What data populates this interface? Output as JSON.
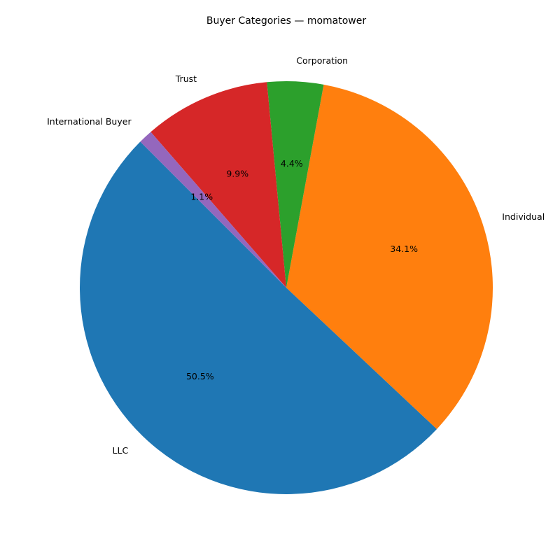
{
  "chart_data": {
    "type": "pie",
    "title": "Buyer Categories — momatower",
    "start_angle_deg": 135,
    "direction": "counterclockwise",
    "slices": [
      {
        "label": "LLC",
        "value": 50.5,
        "pct_label": "50.5%",
        "color": "#1f77b4"
      },
      {
        "label": "Individual",
        "value": 34.1,
        "pct_label": "34.1%",
        "color": "#ff7f0e"
      },
      {
        "label": "Corporation",
        "value": 4.4,
        "pct_label": "4.4%",
        "color": "#2ca02c"
      },
      {
        "label": "Trust",
        "value": 9.9,
        "pct_label": "9.9%",
        "color": "#d62728"
      },
      {
        "label": "International Buyer",
        "value": 1.1,
        "pct_label": "1.1%",
        "color": "#9467bd"
      }
    ]
  }
}
